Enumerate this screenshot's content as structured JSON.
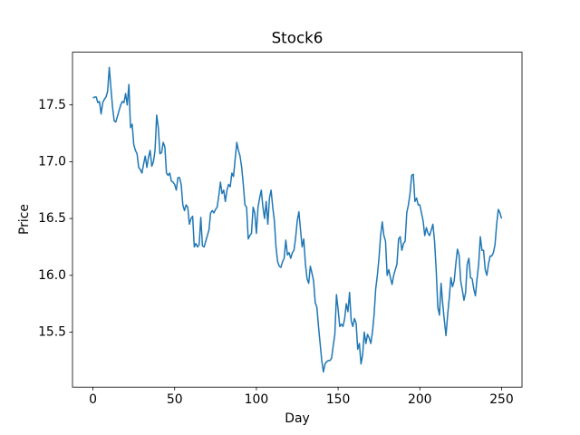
{
  "chart_data": {
    "type": "line",
    "title": "Stock6",
    "xlabel": "Day",
    "ylabel": "Price",
    "x": [
      0,
      1,
      2,
      3,
      4,
      5,
      6,
      7,
      8,
      9,
      10,
      11,
      12,
      13,
      14,
      15,
      16,
      17,
      18,
      19,
      20,
      21,
      22,
      23,
      24,
      25,
      26,
      27,
      28,
      29,
      30,
      31,
      32,
      33,
      34,
      35,
      36,
      37,
      38,
      39,
      40,
      41,
      42,
      43,
      44,
      45,
      46,
      47,
      48,
      49,
      50,
      51,
      52,
      53,
      54,
      55,
      56,
      57,
      58,
      59,
      60,
      61,
      62,
      63,
      64,
      65,
      66,
      67,
      68,
      69,
      70,
      71,
      72,
      73,
      74,
      75,
      76,
      77,
      78,
      79,
      80,
      81,
      82,
      83,
      84,
      85,
      86,
      87,
      88,
      89,
      90,
      91,
      92,
      93,
      94,
      95,
      96,
      97,
      98,
      99,
      100,
      101,
      102,
      103,
      104,
      105,
      106,
      107,
      108,
      109,
      110,
      111,
      112,
      113,
      114,
      115,
      116,
      117,
      118,
      119,
      120,
      121,
      122,
      123,
      124,
      125,
      126,
      127,
      128,
      129,
      130,
      131,
      132,
      133,
      134,
      135,
      136,
      137,
      138,
      139,
      140,
      141,
      142,
      143,
      144,
      145,
      146,
      147,
      148,
      149,
      150,
      151,
      152,
      153,
      154,
      155,
      156,
      157,
      158,
      159,
      160,
      161,
      162,
      163,
      164,
      165,
      166,
      167,
      168,
      169,
      170,
      171,
      172,
      173,
      174,
      175,
      176,
      177,
      178,
      179,
      180,
      181,
      182,
      183,
      184,
      185,
      186,
      187,
      188,
      189,
      190,
      191,
      192,
      193,
      194,
      195,
      196,
      197,
      198,
      199,
      200,
      201,
      202,
      203,
      204,
      205,
      206,
      207,
      208,
      209,
      210,
      211,
      212,
      213,
      214,
      215,
      216,
      217,
      218,
      219,
      220,
      221,
      222,
      223,
      224,
      225,
      226,
      227,
      228,
      229,
      230,
      231,
      232,
      233,
      234,
      235,
      236,
      237,
      238,
      239,
      240,
      241,
      242,
      243,
      244,
      245,
      246,
      247,
      248,
      249,
      250
    ],
    "series": [
      {
        "color": "#1f77b4",
        "values": [
          17.56,
          17.57,
          17.57,
          17.52,
          17.53,
          17.42,
          17.52,
          17.55,
          17.57,
          17.62,
          17.83,
          17.65,
          17.48,
          17.36,
          17.35,
          17.4,
          17.45,
          17.5,
          17.53,
          17.52,
          17.6,
          17.5,
          17.68,
          17.3,
          17.33,
          17.15,
          17.1,
          17.07,
          16.95,
          16.93,
          16.9,
          16.98,
          17.05,
          16.95,
          17.04,
          17.1,
          16.96,
          17.0,
          17.1,
          17.41,
          17.3,
          17.07,
          17.08,
          17.17,
          17.13,
          16.9,
          16.88,
          16.9,
          16.83,
          16.82,
          16.8,
          16.75,
          16.86,
          16.86,
          16.8,
          16.62,
          16.57,
          16.62,
          16.6,
          16.45,
          16.5,
          16.52,
          16.25,
          16.28,
          16.25,
          16.27,
          16.51,
          16.26,
          16.25,
          16.3,
          16.35,
          16.4,
          16.55,
          16.57,
          16.55,
          16.58,
          16.6,
          16.7,
          16.82,
          16.72,
          16.75,
          16.65,
          16.75,
          16.8,
          16.78,
          16.9,
          16.87,
          17.02,
          17.17,
          17.1,
          17.05,
          16.95,
          16.8,
          16.62,
          16.6,
          16.32,
          16.35,
          16.37,
          16.6,
          16.55,
          16.37,
          16.6,
          16.68,
          16.75,
          16.6,
          16.5,
          16.65,
          16.45,
          16.68,
          16.75,
          16.6,
          16.48,
          16.25,
          16.12,
          16.08,
          16.07,
          16.12,
          16.15,
          16.31,
          16.18,
          16.2,
          16.15,
          16.2,
          16.22,
          16.33,
          16.48,
          16.56,
          16.4,
          16.25,
          16.32,
          16.1,
          15.97,
          15.93,
          16.08,
          16.02,
          15.95,
          15.76,
          15.72,
          15.55,
          15.4,
          15.25,
          15.15,
          15.22,
          15.24,
          15.25,
          15.25,
          15.27,
          15.38,
          15.48,
          15.83,
          15.7,
          15.55,
          15.57,
          15.55,
          15.62,
          15.75,
          15.68,
          15.85,
          15.6,
          15.55,
          15.62,
          15.58,
          15.35,
          15.4,
          15.22,
          15.3,
          15.5,
          15.4,
          15.48,
          15.45,
          15.4,
          15.5,
          15.65,
          15.88,
          16.0,
          16.15,
          16.35,
          16.47,
          16.35,
          16.3,
          16.0,
          16.05,
          15.98,
          15.92,
          16.0,
          16.05,
          16.1,
          16.32,
          16.34,
          16.22,
          16.28,
          16.3,
          16.55,
          16.62,
          16.72,
          16.88,
          16.89,
          16.65,
          16.68,
          16.62,
          16.62,
          16.55,
          16.48,
          16.35,
          16.42,
          16.37,
          16.35,
          16.4,
          16.45,
          16.3,
          16.05,
          15.72,
          15.65,
          15.93,
          15.75,
          15.6,
          15.47,
          15.65,
          15.8,
          15.98,
          15.9,
          15.95,
          16.1,
          16.23,
          16.18,
          15.95,
          15.87,
          15.78,
          15.85,
          16.1,
          16.15,
          15.98,
          15.97,
          15.88,
          15.82,
          15.97,
          16.1,
          16.34,
          16.22,
          16.22,
          16.05,
          16.0,
          16.1,
          16.17,
          16.17,
          16.2,
          16.27,
          16.45,
          16.58,
          16.55,
          16.5
        ]
      }
    ],
    "xlim": [
      -12.5,
      262.5
    ],
    "xticks": [
      0,
      50,
      100,
      150,
      200,
      250
    ],
    "ylim": [
      15.016,
      17.964
    ],
    "yticks": [
      15.5,
      {
        "value": 16.0,
        "label": "16.0"
      },
      16.5,
      {
        "value": 17.0,
        "label": "17.0"
      },
      17.5
    ]
  }
}
